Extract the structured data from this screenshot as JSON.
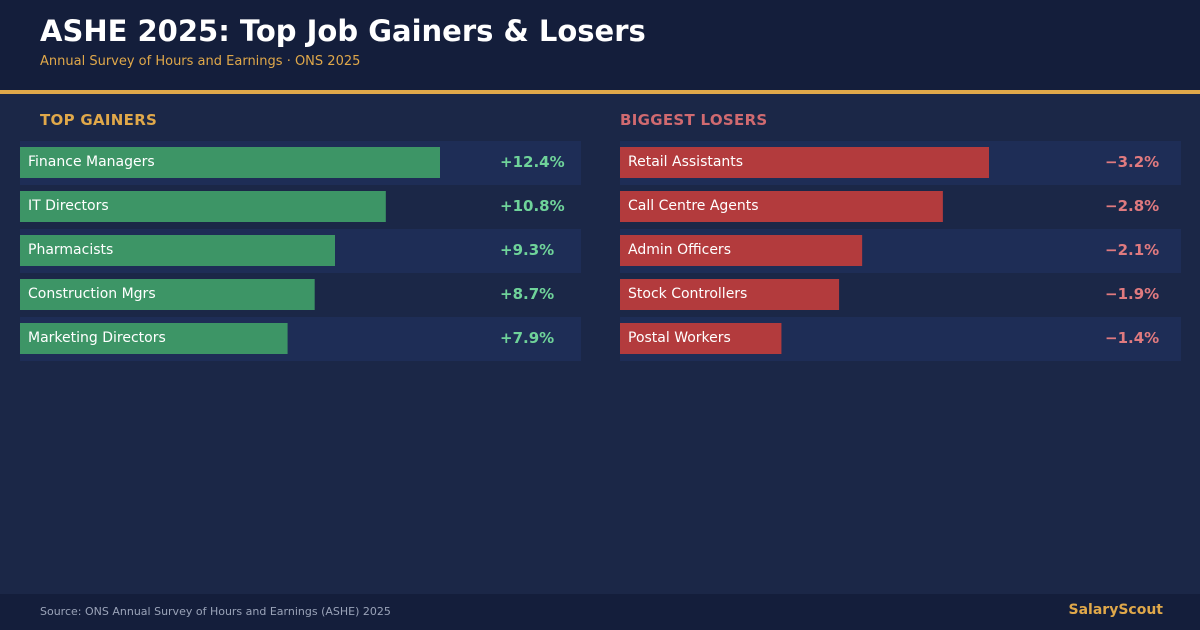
{
  "header": {
    "title": "ASHE 2025: Top Job Gainers & Losers",
    "subtitle": "Annual Survey of Hours and Earnings · ONS 2025"
  },
  "footer": {
    "source": "Source: ONS Annual Survey of Hours and Earnings (ASHE) 2025",
    "brand": "SalaryScout"
  },
  "colors": {
    "background": "#1b2747",
    "header_bg": "#141e3b",
    "accent": "#e0a84a",
    "gainer_bar": "#3d9566",
    "gainer_text": "#6fd39a",
    "loser_bar": "#b33b3d",
    "loser_text": "#e07a7f",
    "loser_heading": "#d06a70",
    "row_alt": "#1e2d56"
  },
  "chart_data": [
    {
      "type": "bar",
      "orientation": "horizontal",
      "title": "TOP GAINERS",
      "categories": [
        "Finance Managers",
        "IT Directors",
        "Pharmacists",
        "Construction Mgrs",
        "Marketing Directors"
      ],
      "values": [
        12.4,
        10.8,
        9.3,
        8.7,
        7.9
      ],
      "value_labels": [
        "+12.4%",
        "+10.8%",
        "+9.3%",
        "+8.7%",
        "+7.9%"
      ],
      "unit": "%"
    },
    {
      "type": "bar",
      "orientation": "horizontal",
      "title": "BIGGEST LOSERS",
      "categories": [
        "Retail Assistants",
        "Call Centre Agents",
        "Admin Officers",
        "Stock Controllers",
        "Postal Workers"
      ],
      "values": [
        -3.2,
        -2.8,
        -2.1,
        -1.9,
        -1.4
      ],
      "value_labels": [
        "−3.2%",
        "−2.8%",
        "−2.1%",
        "−1.9%",
        "−1.4%"
      ],
      "unit": "%"
    }
  ]
}
